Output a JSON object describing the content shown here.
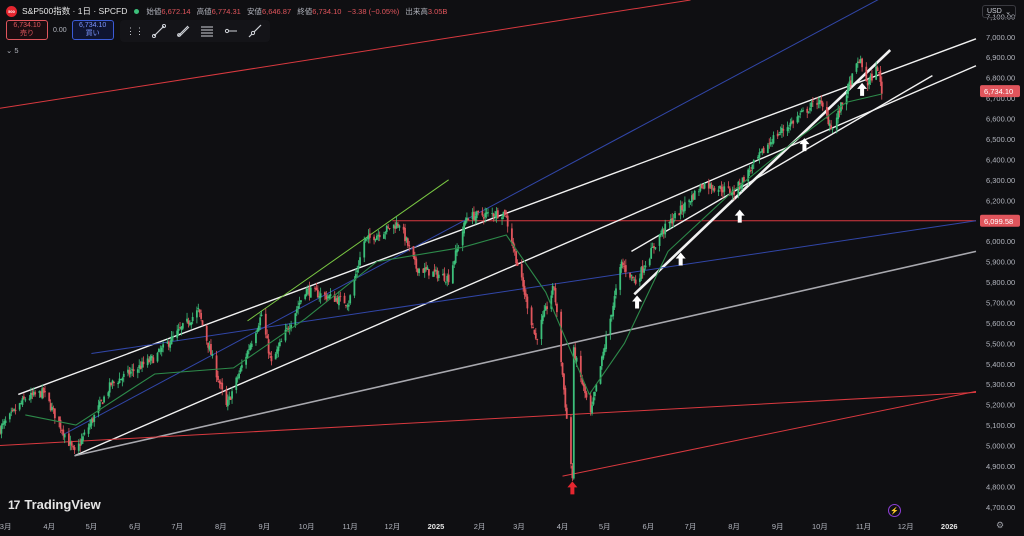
{
  "header": {
    "title": "S&P500指数 · 1日 · SPCFD",
    "logo_text": "500",
    "open_label": "始値",
    "open": "6,672.14",
    "high_label": "高値",
    "high": "6,774.31",
    "low_label": "安値",
    "low": "6,646.87",
    "close_label": "終値",
    "close": "6,734.10",
    "change": "−3.38 (−0.05%)",
    "volume_label": "出来高",
    "volume": "3.05B"
  },
  "quotes": {
    "sell_price": "6,734.10",
    "sell_label": "売り",
    "spread": "0.00",
    "buy_price": "6,734.10",
    "buy_label": "買い"
  },
  "toolbar": {
    "icons": [
      "grip-icon",
      "trend-line-icon",
      "trend-angle-icon",
      "fib-lines-icon",
      "horizontal-ray-icon",
      "extended-line-icon"
    ]
  },
  "indicator": {
    "label": "5"
  },
  "currency": {
    "label": "USD"
  },
  "brand": {
    "name": "TradingView",
    "mark": "17"
  },
  "colors": {
    "background": "#0f0f12",
    "up": "#3cbf7a",
    "down": "#e0555c",
    "ma": "#2d8a4a",
    "price_label": "#e0555c",
    "trend_white": "#f2f2f2",
    "trend_red": "#d9393f",
    "trend_blue": "#3146a8",
    "trend_gray": "#a8a8ae",
    "trend_green": "#7ac943"
  },
  "chart_data": {
    "type": "candlestick",
    "symbol": "S&P500指数",
    "interval": "1日",
    "yaxis": {
      "ticks": [
        4700,
        4800,
        4900,
        5000,
        5100,
        5200,
        5300,
        5400,
        5500,
        5600,
        5700,
        5800,
        5900,
        6000,
        6100,
        6200,
        6300,
        6400,
        6500,
        6600,
        6700,
        6800,
        6900,
        7000,
        7100
      ],
      "ylim": [
        4660,
        7180
      ]
    },
    "xaxis": {
      "ticks": [
        "3月",
        "4月",
        "5月",
        "6月",
        "7月",
        "8月",
        "9月",
        "10月",
        "11月",
        "12月",
        "2025",
        "2月",
        "3月",
        "4月",
        "5月",
        "6月",
        "7月",
        "8月",
        "9月",
        "10月",
        "11月",
        "12月",
        "2026"
      ],
      "range": [
        "2024-02-26",
        "2026-01-20"
      ]
    },
    "price_labels": [
      {
        "value": 6734.1,
        "text": "6,734.10",
        "color": "#e0555c"
      },
      {
        "value": 6099.58,
        "text": "6,099.58",
        "color": "#e0555c"
      }
    ],
    "price_path": [
      [
        "2024-02-26",
        5080
      ],
      [
        "2024-03-15",
        5230
      ],
      [
        "2024-03-28",
        5260
      ],
      [
        "2024-04-19",
        4960
      ],
      [
        "2024-05-15",
        5300
      ],
      [
        "2024-06-15",
        5430
      ],
      [
        "2024-07-16",
        5660
      ],
      [
        "2024-08-05",
        5190
      ],
      [
        "2024-08-30",
        5640
      ],
      [
        "2024-09-06",
        5400
      ],
      [
        "2024-09-30",
        5760
      ],
      [
        "2024-10-31",
        5700
      ],
      [
        "2024-11-11",
        6000
      ],
      [
        "2024-12-06",
        6090
      ],
      [
        "2024-12-18",
        5870
      ],
      [
        "2025-01-10",
        5820
      ],
      [
        "2025-01-23",
        6120
      ],
      [
        "2025-02-19",
        6140
      ],
      [
        "2025-03-13",
        5520
      ],
      [
        "2025-03-26",
        5780
      ],
      [
        "2025-04-08",
        4840
      ],
      [
        "2025-04-09",
        5460
      ],
      [
        "2025-04-21",
        5150
      ],
      [
        "2025-05-13",
        5890
      ],
      [
        "2025-05-23",
        5800
      ],
      [
        "2025-06-10",
        6040
      ],
      [
        "2025-07-10",
        6280
      ],
      [
        "2025-08-01",
        6240
      ],
      [
        "2025-08-28",
        6500
      ],
      [
        "2025-09-30",
        6690
      ],
      [
        "2025-10-10",
        6550
      ],
      [
        "2025-10-29",
        6890
      ],
      [
        "2025-11-04",
        6770
      ],
      [
        "2025-11-11",
        6850
      ],
      [
        "2025-11-14",
        6734
      ]
    ],
    "moving_average": [
      [
        "2024-03-15",
        5150
      ],
      [
        "2024-04-20",
        5100
      ],
      [
        "2024-06-15",
        5350
      ],
      [
        "2024-08-10",
        5380
      ],
      [
        "2024-09-30",
        5620
      ],
      [
        "2024-11-20",
        5900
      ],
      [
        "2025-01-20",
        5970
      ],
      [
        "2025-02-20",
        6030
      ],
      [
        "2025-03-20",
        5750
      ],
      [
        "2025-04-20",
        5250
      ],
      [
        "2025-05-15",
        5500
      ],
      [
        "2025-06-15",
        5950
      ],
      [
        "2025-08-01",
        6250
      ],
      [
        "2025-09-15",
        6500
      ],
      [
        "2025-10-20",
        6680
      ],
      [
        "2025-11-14",
        6720
      ]
    ],
    "annotations": [
      {
        "type": "hline",
        "value": 6099.58,
        "from": "2024-12-01",
        "color": "red"
      },
      {
        "type": "trendline",
        "points": [
          [
            "2024-04-19",
            4950
          ],
          [
            "2025-11-01",
            6620
          ]
        ],
        "color": "white",
        "extended": true
      },
      {
        "type": "trendline",
        "points": [
          [
            "2024-04-19",
            4950
          ],
          [
            "2026-01-20",
            5950
          ]
        ],
        "color": "gray",
        "extended": false
      },
      {
        "type": "trendline",
        "points": [
          [
            "2024-03-10",
            5250
          ],
          [
            "2026-01-20",
            6990
          ]
        ],
        "color": "white",
        "extended": false
      },
      {
        "type": "trendline",
        "points": [
          [
            "2025-05-22",
            5740
          ],
          [
            "2025-11-20",
            6935
          ]
        ],
        "color": "white",
        "bold": true
      },
      {
        "type": "trendline",
        "points": [
          [
            "2025-05-20",
            5950
          ],
          [
            "2025-12-20",
            6810
          ]
        ],
        "color": "white",
        "extended": false
      },
      {
        "type": "trendline",
        "points": [
          [
            "2024-08-20",
            5610
          ],
          [
            "2025-01-10",
            6300
          ]
        ],
        "color": "green"
      },
      {
        "type": "trendline",
        "points": [
          [
            "2024-04-10",
            5050
          ],
          [
            "2025-11-30",
            7250
          ]
        ],
        "color": "blue"
      },
      {
        "type": "trendline",
        "points": [
          [
            "2024-05-01",
            5450
          ],
          [
            "2026-01-20",
            6100
          ]
        ],
        "color": "blue"
      },
      {
        "type": "trendline",
        "points": [
          [
            "2024-02-26",
            5000
          ],
          [
            "2026-01-20",
            5260
          ]
        ],
        "color": "red",
        "extended": false
      },
      {
        "type": "trendline",
        "points": [
          [
            "2025-04-01",
            4850
          ],
          [
            "2026-01-20",
            5265
          ]
        ],
        "color": "red"
      },
      {
        "type": "trendline",
        "points": [
          [
            "2024-02-26",
            6650
          ],
          [
            "2025-07-01",
            7180
          ]
        ],
        "color": "red"
      }
    ],
    "arrows": [
      {
        "date": "2025-04-08",
        "value": 4790,
        "direction": "up",
        "color": "red"
      },
      {
        "date": "2025-05-24",
        "value": 5700,
        "direction": "up",
        "color": "white"
      },
      {
        "date": "2025-06-24",
        "value": 5910,
        "direction": "up",
        "color": "white"
      },
      {
        "date": "2025-08-05",
        "value": 6120,
        "direction": "up",
        "color": "white"
      },
      {
        "date": "2025-09-20",
        "value": 6470,
        "direction": "up",
        "color": "white"
      },
      {
        "date": "2025-10-31",
        "value": 6740,
        "direction": "up",
        "color": "white"
      }
    ]
  }
}
